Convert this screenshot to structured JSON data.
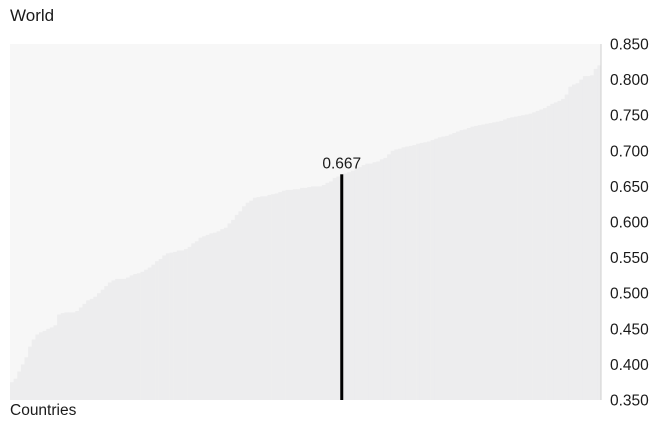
{
  "chart_data": {
    "type": "bar",
    "title": "World",
    "xlabel": "Countries",
    "ylabel": "",
    "ylim": [
      0.35,
      0.85
    ],
    "y_ticks": [
      "0.850",
      "0.800",
      "0.750",
      "0.700",
      "0.650",
      "0.600",
      "0.550",
      "0.500",
      "0.450",
      "0.400",
      "0.350"
    ],
    "highlight": {
      "label": "0.667",
      "value": 0.667,
      "index": 91
    },
    "series": [
      {
        "values": [
          0.375,
          0.38,
          0.39,
          0.4,
          0.41,
          0.425,
          0.435,
          0.442,
          0.445,
          0.447,
          0.45,
          0.452,
          0.455,
          0.47,
          0.472,
          0.473,
          0.473,
          0.473,
          0.475,
          0.48,
          0.485,
          0.49,
          0.492,
          0.495,
          0.5,
          0.505,
          0.51,
          0.515,
          0.518,
          0.52,
          0.52,
          0.52,
          0.522,
          0.525,
          0.527,
          0.528,
          0.53,
          0.533,
          0.536,
          0.54,
          0.545,
          0.548,
          0.553,
          0.556,
          0.557,
          0.558,
          0.56,
          0.56,
          0.562,
          0.565,
          0.57,
          0.573,
          0.578,
          0.58,
          0.582,
          0.584,
          0.585,
          0.587,
          0.59,
          0.592,
          0.598,
          0.603,
          0.61,
          0.615,
          0.622,
          0.627,
          0.63,
          0.634,
          0.635,
          0.636,
          0.636,
          0.638,
          0.639,
          0.64,
          0.642,
          0.644,
          0.645,
          0.645,
          0.646,
          0.646,
          0.648,
          0.648,
          0.649,
          0.65,
          0.65,
          0.65,
          0.652,
          0.655,
          0.657,
          0.662,
          0.664,
          0.667,
          0.668,
          0.67,
          0.672,
          0.675,
          0.677,
          0.68,
          0.682,
          0.682,
          0.684,
          0.685,
          0.688,
          0.69,
          0.695,
          0.7,
          0.702,
          0.703,
          0.705,
          0.706,
          0.707,
          0.708,
          0.71,
          0.711,
          0.712,
          0.713,
          0.715,
          0.717,
          0.719,
          0.72,
          0.721,
          0.723,
          0.725,
          0.727,
          0.729,
          0.73,
          0.732,
          0.734,
          0.735,
          0.736,
          0.737,
          0.738,
          0.739,
          0.74,
          0.741,
          0.742,
          0.744,
          0.746,
          0.747,
          0.748,
          0.749,
          0.75,
          0.751,
          0.752,
          0.754,
          0.756,
          0.758,
          0.76,
          0.763,
          0.766,
          0.768,
          0.77,
          0.773,
          0.779,
          0.79,
          0.793,
          0.795,
          0.8,
          0.805,
          0.805,
          0.806,
          0.815,
          0.82
        ]
      }
    ],
    "bar_color": "#ededee",
    "highlight_color": "#000000"
  }
}
